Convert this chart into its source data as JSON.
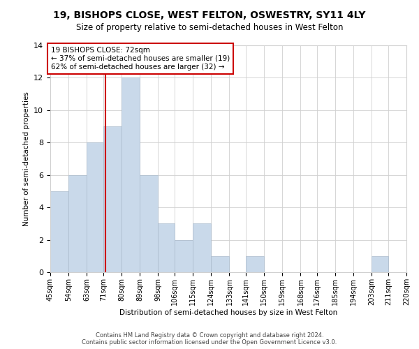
{
  "title": "19, BISHOPS CLOSE, WEST FELTON, OSWESTRY, SY11 4LY",
  "subtitle": "Size of property relative to semi-detached houses in West Felton",
  "xlabel": "Distribution of semi-detached houses by size in West Felton",
  "ylabel": "Number of semi-detached properties",
  "property_size": 72,
  "property_label": "19 BISHOPS CLOSE: 72sqm",
  "smaller_pct": 37,
  "smaller_count": 19,
  "larger_pct": 62,
  "larger_count": 32,
  "bin_edges": [
    45,
    54,
    63,
    71,
    80,
    89,
    98,
    106,
    115,
    124,
    133,
    141,
    150,
    159,
    168,
    176,
    185,
    194,
    203,
    211,
    220
  ],
  "bin_labels": [
    "45sqm",
    "54sqm",
    "63sqm",
    "71sqm",
    "80sqm",
    "89sqm",
    "98sqm",
    "106sqm",
    "115sqm",
    "124sqm",
    "133sqm",
    "141sqm",
    "150sqm",
    "159sqm",
    "168sqm",
    "176sqm",
    "185sqm",
    "194sqm",
    "203sqm",
    "211sqm",
    "220sqm"
  ],
  "counts": [
    5,
    6,
    8,
    9,
    12,
    6,
    3,
    2,
    3,
    1,
    0,
    1,
    0,
    0,
    0,
    0,
    0,
    0,
    1,
    0
  ],
  "bar_color": "#c9d9ea",
  "bar_edge_color": "#aabbcc",
  "red_line_color": "#cc0000",
  "annotation_box_edge": "#cc0000",
  "grid_color": "#d0d0d0",
  "background_color": "#ffffff",
  "title_fontsize": 10,
  "subtitle_fontsize": 8.5,
  "axis_label_fontsize": 7.5,
  "tick_fontsize": 7,
  "annotation_fontsize": 7.5,
  "footer_text": "Contains HM Land Registry data © Crown copyright and database right 2024.\nContains public sector information licensed under the Open Government Licence v3.0.",
  "footer_fontsize": 6,
  "ylim": [
    0,
    14
  ]
}
